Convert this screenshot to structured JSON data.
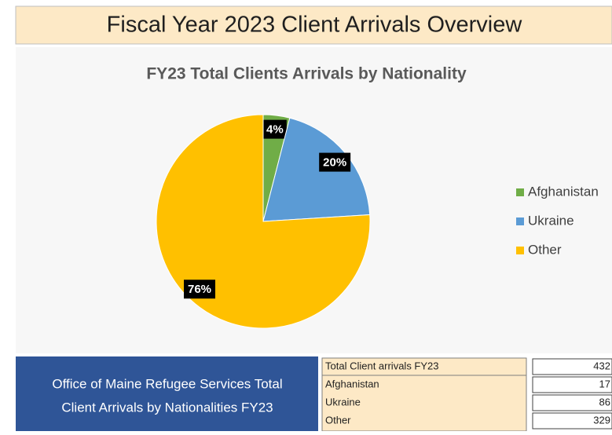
{
  "header": {
    "title": "Fiscal Year 2023 Client Arrivals Overview"
  },
  "chart_data": {
    "type": "pie",
    "title": "FY23 Total Clients Arrivals by Nationality",
    "categories": [
      "Afghanistan",
      "Ukraine",
      "Other"
    ],
    "values": [
      4,
      20,
      76
    ],
    "value_labels": [
      "4%",
      "20%",
      "76%"
    ],
    "colors": [
      "#70ad47",
      "#5b9bd5",
      "#ffc000"
    ],
    "legend": "right"
  },
  "footer": {
    "lines": [
      "Office of Maine Refugee Services Total",
      "Client Arrivals by Nationalities FY23"
    ]
  },
  "table": {
    "rows": [
      [
        "Total Client arrivals FY23",
        432
      ],
      [
        "Afghanistan",
        17
      ],
      [
        "Ukraine",
        86
      ],
      [
        "Other",
        329
      ]
    ]
  }
}
